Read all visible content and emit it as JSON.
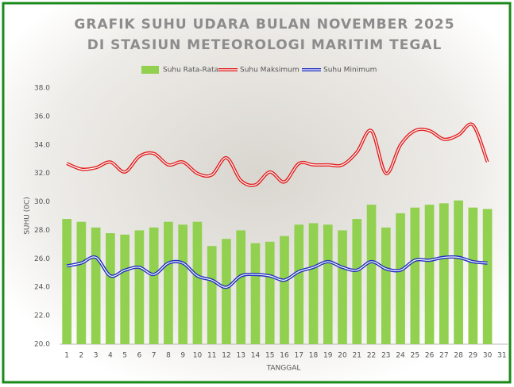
{
  "chart_data": {
    "type": "bar",
    "title": [
      "GRAFIK SUHU UDARA BULAN NOVEMBER 2025",
      "DI STASIUN METEOROLOGI MARITIM TEGAL"
    ],
    "x_label": "TANGGAL",
    "y_label": "SUHU (0C)",
    "categories": [
      "1",
      "2",
      "3",
      "4",
      "5",
      "6",
      "7",
      "8",
      "9",
      "10",
      "11",
      "12",
      "13",
      "14",
      "15",
      "16",
      "17",
      "18",
      "19",
      "20",
      "21",
      "22",
      "23",
      "24",
      "25",
      "26",
      "27",
      "28",
      "29",
      "30",
      "31"
    ],
    "series": [
      {
        "name": "Suhu Rata-Rata",
        "type": "bar",
        "color": "#92d050",
        "values": [
          28.8,
          28.6,
          28.2,
          27.8,
          27.7,
          28.0,
          28.2,
          28.6,
          28.4,
          28.6,
          26.9,
          27.4,
          28.0,
          27.1,
          27.2,
          27.6,
          28.4,
          28.5,
          28.4,
          28.0,
          28.8,
          29.8,
          28.2,
          29.2,
          29.6,
          29.8,
          29.9,
          30.1,
          29.6,
          29.5,
          null
        ]
      },
      {
        "name": "Suhu Maksimum",
        "type": "line",
        "color": "#e02020",
        "values": [
          32.7,
          32.3,
          32.4,
          32.8,
          32.1,
          33.2,
          33.4,
          32.6,
          32.8,
          32.0,
          31.9,
          33.1,
          31.5,
          31.2,
          32.1,
          31.4,
          32.7,
          32.6,
          32.6,
          32.6,
          33.5,
          35.0,
          32.0,
          34.0,
          35.0,
          35.0,
          34.4,
          34.7,
          35.4,
          32.8,
          null
        ]
      },
      {
        "name": "Suhu Minimum",
        "type": "line",
        "color": "#2030c0",
        "values": [
          25.5,
          25.7,
          26.1,
          24.8,
          25.2,
          25.4,
          24.9,
          25.7,
          25.7,
          24.8,
          24.5,
          24.0,
          24.8,
          24.9,
          24.8,
          24.5,
          25.1,
          25.4,
          25.8,
          25.4,
          25.2,
          25.8,
          25.3,
          25.2,
          25.9,
          25.9,
          26.1,
          26.1,
          25.8,
          25.7,
          null
        ]
      }
    ],
    "ylim": [
      20,
      38
    ],
    "yticks": [
      {
        "value": 20,
        "label": "20.0"
      },
      {
        "value": 22,
        "label": "22.0"
      },
      {
        "value": 24,
        "label": "24.0"
      },
      {
        "value": 26,
        "label": "26.0"
      },
      {
        "value": 28,
        "label": "28.0"
      },
      {
        "value": 30,
        "label": "30.0"
      },
      {
        "value": 32,
        "label": "32.0"
      },
      {
        "value": 34,
        "label": "34.0"
      },
      {
        "value": 36,
        "label": "36.0"
      },
      {
        "value": 38,
        "label": "38.0"
      }
    ],
    "grid": false,
    "legend": "top"
  }
}
